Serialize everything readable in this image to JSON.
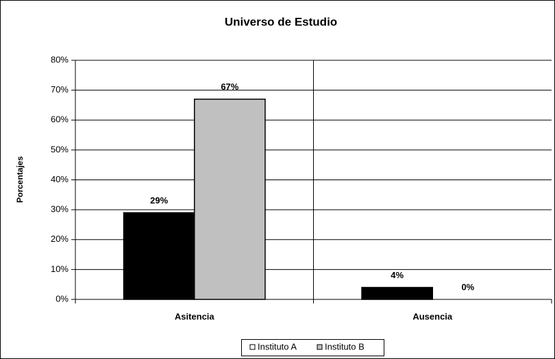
{
  "chart_data": {
    "type": "bar",
    "title": "Universo de Estudio",
    "y_label": "Porcentajes",
    "categories": [
      "Asitencia",
      "Ausencia"
    ],
    "series": [
      {
        "name": "Instituto A",
        "color": "#000000",
        "values": [
          29,
          4
        ],
        "value_labels": [
          "29%",
          "4%"
        ]
      },
      {
        "name": "Instituto B",
        "color": "#c0c0c0",
        "values": [
          67,
          0
        ],
        "value_labels": [
          "67%",
          "0%"
        ]
      }
    ],
    "legend_swatch_colors": [
      "#ffffff",
      "#c0c0c0"
    ],
    "ylim": [
      0,
      80
    ],
    "yticks": [
      {
        "value": 0,
        "label": "0%"
      },
      {
        "value": 10,
        "label": "10%"
      },
      {
        "value": 20,
        "label": "20%"
      },
      {
        "value": 30,
        "label": "30%"
      },
      {
        "value": 40,
        "label": "40%"
      },
      {
        "value": 50,
        "label": "50%"
      },
      {
        "value": 60,
        "label": "60%"
      },
      {
        "value": 70,
        "label": "70%"
      },
      {
        "value": 80,
        "label": "80%"
      }
    ],
    "grid": true,
    "legend": "bottom"
  }
}
